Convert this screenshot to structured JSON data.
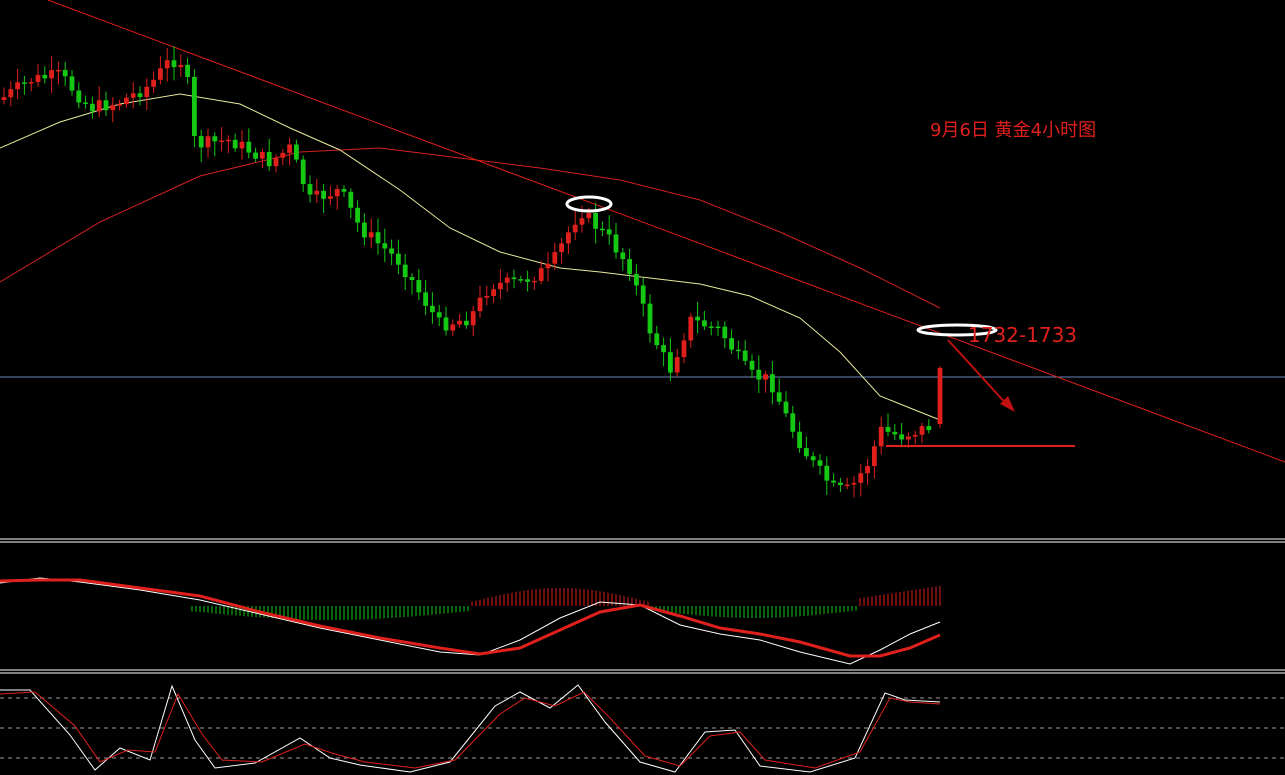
{
  "chart_data": {
    "type": "candlestick",
    "title": "9月6日 黄金4小时图",
    "annotations": {
      "resistance_label": "1732-1733"
    },
    "colors": {
      "background": "#000000",
      "up": "#e0201c",
      "down": "#14c814",
      "ma_short": "#e8e89a",
      "ma_long": "#d02020",
      "trendline": "#e0201c",
      "macd_dif": "#ffffff",
      "macd_dea": "#e0201c",
      "kdj_k": "#ffffff",
      "kdj_d": "#e0201c"
    },
    "panels": [
      "price",
      "macd",
      "stochastic"
    ],
    "grid": false,
    "legend": "none"
  }
}
